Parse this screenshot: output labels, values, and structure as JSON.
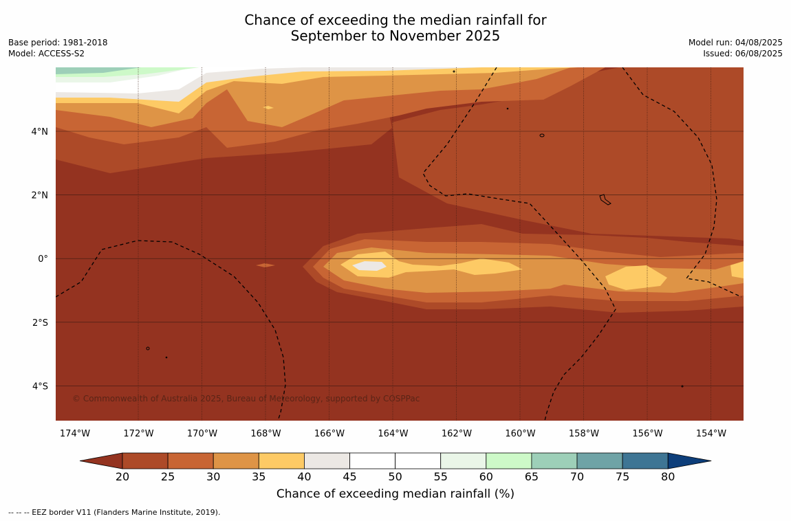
{
  "header": {
    "title_line1": "Chance of exceeding the median rainfall for",
    "title_line2": "September to November 2025",
    "base_period": "Base period: 1981-2018",
    "model": "Model: ACCESS-S2",
    "model_run": "Model run: 04/08/2025",
    "issued": "Issued: 06/08/2025"
  },
  "map": {
    "copyright": "© Commonwealth of Australia 2025, Bureau of Meteorology, supported by COSPPac",
    "lon_ticks": [
      "174°W",
      "172°W",
      "170°W",
      "168°W",
      "166°W",
      "164°W",
      "162°W",
      "160°W",
      "158°W",
      "156°W",
      "154°W"
    ],
    "lat_ticks": [
      "4°N",
      "2°N",
      "0°",
      "2°S",
      "4°S"
    ],
    "colors": {
      "c15": "#943320",
      "c20": "#ad4a28",
      "c25": "#c86534",
      "c30": "#de9446",
      "c35": "#fdca65",
      "c40": "#ece8e4",
      "c45": "#ffffff",
      "c55": "#eaf6e8",
      "c60": "#cdf9c8",
      "c65": "#9dcfb8",
      "c70": "#6fa3a6",
      "c75": "#3e7594",
      "c80": "#0d3e7a"
    }
  },
  "colorbar": {
    "labels": [
      "20",
      "25",
      "30",
      "35",
      "40",
      "45",
      "50",
      "55",
      "60",
      "65",
      "70",
      "75",
      "80"
    ],
    "title": "Chance of exceeding median rainfall (%)"
  },
  "footnote": "--  --  -- EEZ border V11 (Flanders Marine Institute, 2019)."
}
